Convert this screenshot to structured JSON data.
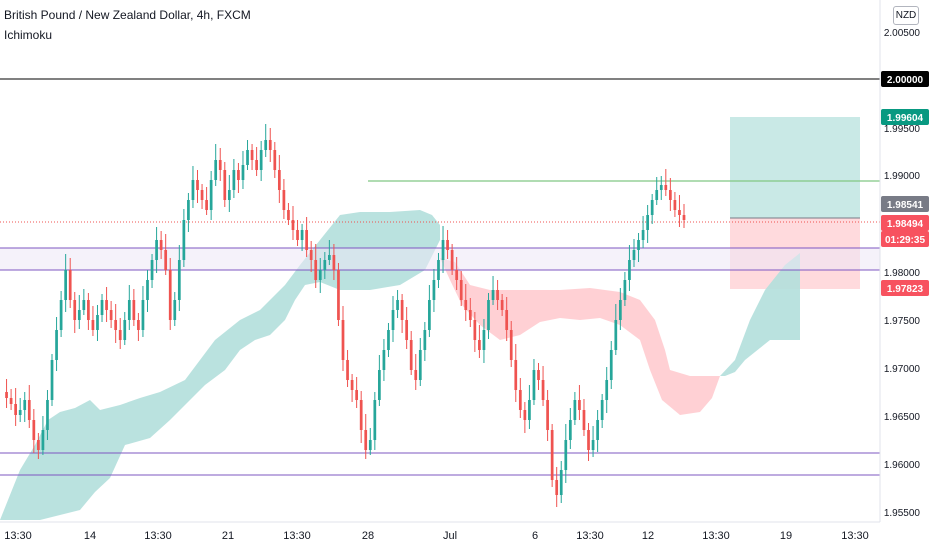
{
  "header": {
    "title": "British Pound / New Zealand Dollar, 4h, FXCM",
    "indicator": "Ichimoku",
    "currency": "NZD"
  },
  "price_axis": {
    "ticks": [
      "2.00500",
      "1.99500",
      "1.99000",
      "1.98000",
      "1.97500",
      "1.97000",
      "1.96500",
      "1.96000",
      "1.95500"
    ],
    "tags": [
      {
        "name": "level-2-00000",
        "text": "2.00000",
        "bg": "#000000",
        "fg": "#ffffff"
      },
      {
        "name": "target-price",
        "text": "1.99604",
        "bg": "#089981",
        "fg": "#ffffff"
      },
      {
        "name": "entry-price",
        "text": "1.98541",
        "bg": "#787b86",
        "fg": "#ffffff"
      },
      {
        "name": "last-price",
        "text": "1.98494",
        "bg": "#f7525f",
        "fg": "#ffffff"
      },
      {
        "name": "countdown",
        "text": "01:29:35",
        "bg": "#f7525f",
        "fg": "#ffffff"
      },
      {
        "name": "stop-price",
        "text": "1.97823",
        "bg": "#f7525f",
        "fg": "#ffffff"
      }
    ]
  },
  "time_axis": {
    "labels": [
      "13:30",
      "14",
      "13:30",
      "21",
      "13:30",
      "28",
      "Jul",
      "6",
      "13:30",
      "12",
      "13:30",
      "19",
      "13:30"
    ]
  },
  "colors": {
    "up": "#26a69a",
    "down": "#ef5350",
    "cloud_bull": "#b2dfdb",
    "cloud_bear": "#ffcdd2",
    "support_line": "#7e57c2",
    "resistance_line": "#81c784",
    "profit_zone": "#b2dfdb",
    "loss_zone": "#ffcdd2"
  }
}
